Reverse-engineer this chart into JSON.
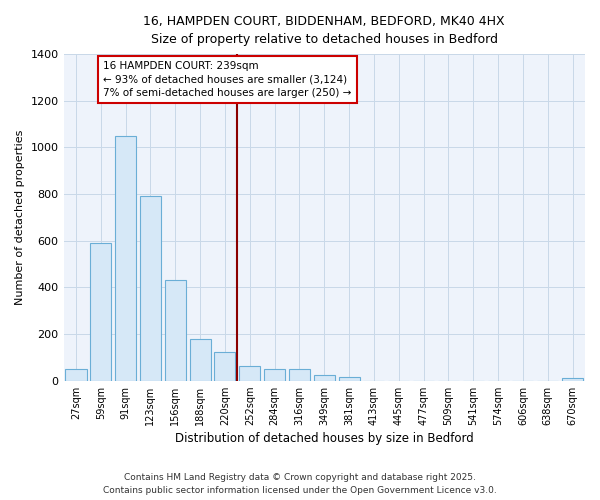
{
  "title_line1": "16, HAMPDEN COURT, BIDDENHAM, BEDFORD, MK40 4HX",
  "title_line2": "Size of property relative to detached houses in Bedford",
  "xlabel": "Distribution of detached houses by size in Bedford",
  "ylabel": "Number of detached properties",
  "categories": [
    "27sqm",
    "59sqm",
    "91sqm",
    "123sqm",
    "156sqm",
    "188sqm",
    "220sqm",
    "252sqm",
    "284sqm",
    "316sqm",
    "349sqm",
    "381sqm",
    "413sqm",
    "445sqm",
    "477sqm",
    "509sqm",
    "541sqm",
    "574sqm",
    "606sqm",
    "638sqm",
    "670sqm"
  ],
  "values": [
    50,
    590,
    1050,
    790,
    430,
    180,
    125,
    65,
    50,
    50,
    25,
    15,
    0,
    0,
    0,
    0,
    0,
    0,
    0,
    0,
    10
  ],
  "bar_color": "#d6e8f7",
  "bar_edge_color": "#6aaed6",
  "grid_color": "#c8d8e8",
  "background_color": "#ffffff",
  "plot_bg_color": "#eef3fb",
  "red_line_index": 6.5,
  "annotation_text": "16 HAMPDEN COURT: 239sqm\n← 93% of detached houses are smaller (3,124)\n7% of semi-detached houses are larger (250) →",
  "annotation_box_color": "#ffffff",
  "annotation_box_edge": "#cc0000",
  "ylim": [
    0,
    1400
  ],
  "footer_line1": "Contains HM Land Registry data © Crown copyright and database right 2025.",
  "footer_line2": "Contains public sector information licensed under the Open Government Licence v3.0."
}
